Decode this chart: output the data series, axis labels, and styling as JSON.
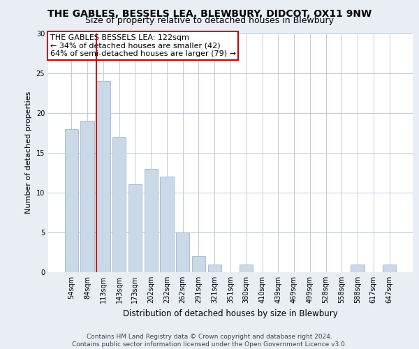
{
  "title": "THE GABLES, BESSELS LEA, BLEWBURY, DIDCOT, OX11 9NW",
  "subtitle": "Size of property relative to detached houses in Blewbury",
  "xlabel": "Distribution of detached houses by size in Blewbury",
  "ylabel": "Number of detached properties",
  "bar_labels": [
    "54sqm",
    "84sqm",
    "113sqm",
    "143sqm",
    "173sqm",
    "202sqm",
    "232sqm",
    "262sqm",
    "291sqm",
    "321sqm",
    "351sqm",
    "380sqm",
    "410sqm",
    "439sqm",
    "469sqm",
    "499sqm",
    "528sqm",
    "558sqm",
    "588sqm",
    "617sqm",
    "647sqm"
  ],
  "bar_values": [
    18,
    19,
    24,
    17,
    11,
    13,
    12,
    5,
    2,
    1,
    0,
    1,
    0,
    0,
    0,
    0,
    0,
    0,
    1,
    0,
    1
  ],
  "bar_color": "#c9d9e8",
  "bar_edgecolor": "#a0b8cc",
  "vline_x_index": 2,
  "vline_color": "#cc0000",
  "annotation_text": "THE GABLES BESSELS LEA: 122sqm\n← 34% of detached houses are smaller (42)\n64% of semi-detached houses are larger (79) →",
  "annotation_box_color": "#ffffff",
  "annotation_box_edgecolor": "#cc0000",
  "ylim": [
    0,
    30
  ],
  "yticks": [
    0,
    5,
    10,
    15,
    20,
    25,
    30
  ],
  "background_color": "#e8eef4",
  "plot_background": "#ffffff",
  "grid_color": "#c0ccd8",
  "footer": "Contains HM Land Registry data © Crown copyright and database right 2024.\nContains public sector information licensed under the Open Government Licence v3.0.",
  "title_fontsize": 10,
  "subtitle_fontsize": 9,
  "xlabel_fontsize": 8.5,
  "ylabel_fontsize": 8,
  "tick_fontsize": 7,
  "annotation_fontsize": 8,
  "footer_fontsize": 6.5
}
